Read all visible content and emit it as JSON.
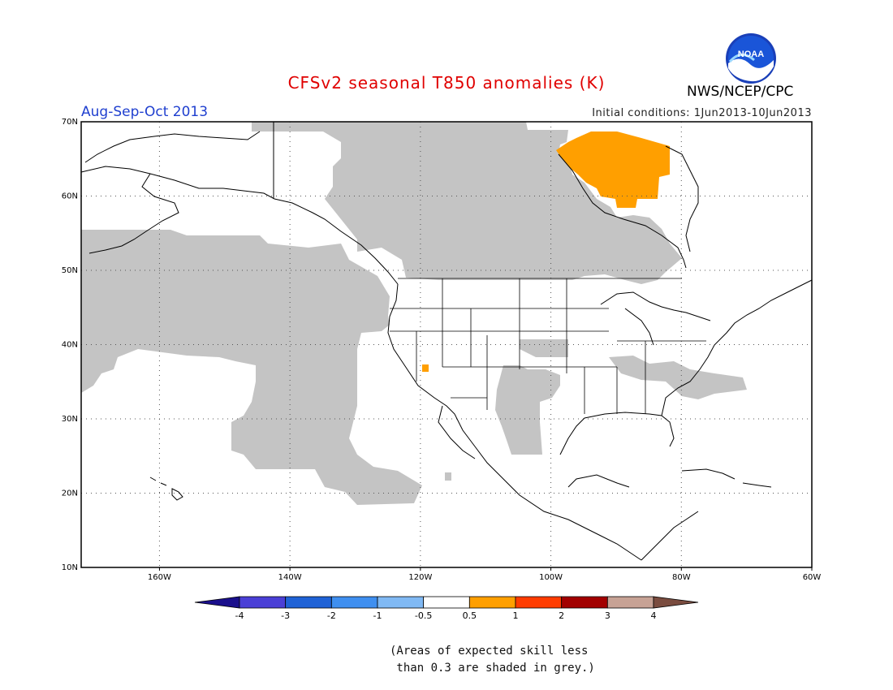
{
  "header": {
    "title": "CFSv2 seasonal T850 anomalies (K)",
    "season": "Aug-Sep-Oct 2013",
    "initial_conditions": "Initial conditions: 1Jun2013-10Jun2013",
    "agency": "NWS/NCEP/CPC",
    "logo_text": "NOAA"
  },
  "map": {
    "projection": "lat-lon",
    "lon_range": [
      -172,
      -60
    ],
    "lat_range": [
      10,
      70
    ],
    "lat_labels": [
      "10N",
      "20N",
      "30N",
      "40N",
      "50N",
      "60N",
      "70N"
    ],
    "lon_labels": [
      "160W",
      "140W",
      "120W",
      "100W",
      "80W",
      "60W"
    ],
    "gridlines": "dotted",
    "colors": {
      "skill_grey": "#c4c4c4",
      "anomaly_0_5_to_1": "#ff9f00",
      "coast": "#000000"
    },
    "anomaly_regions": [
      {
        "name": "Hudson Bay / Labrador",
        "category": "0.5 to 1"
      },
      {
        "name": "southern Nevada",
        "category": "0.5 to 1"
      }
    ]
  },
  "colorbar": {
    "labels": [
      "-4",
      "-3",
      "-2",
      "-1",
      "-0.5",
      "0.5",
      "1",
      "2",
      "3",
      "4"
    ],
    "colors": [
      "#1a0f8c",
      "#4a3fd6",
      "#1f62d6",
      "#3f8ff0",
      "#80b9f4",
      "#ffffff",
      "#ff9f00",
      "#ff3c00",
      "#a20000",
      "#c7a295",
      "#7a4c3f"
    ]
  },
  "footnote": {
    "line1": "(Areas of expected skill less",
    "line2": " than 0.3 are shaded in grey.)"
  }
}
